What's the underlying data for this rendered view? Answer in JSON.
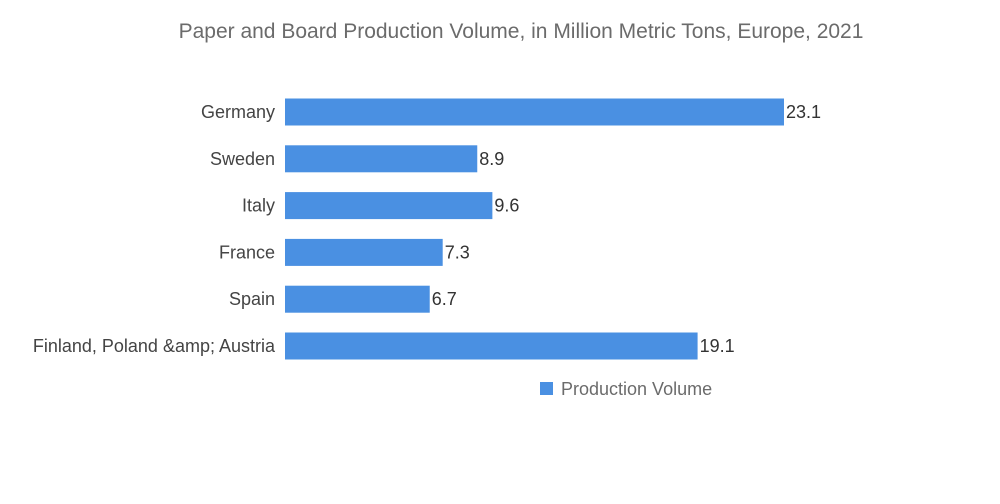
{
  "chart_data": {
    "type": "bar",
    "orientation": "horizontal",
    "title": "Paper and Board Production Volume, in Million Metric Tons, Europe, 2021",
    "categories": [
      "Germany",
      "Sweden",
      "Italy",
      "France",
      "Spain",
      "Finland, Poland &amp; Austria"
    ],
    "series": [
      {
        "name": "Production Volume",
        "values": [
          23.1,
          8.9,
          9.6,
          7.3,
          6.7,
          19.1
        ],
        "color": "#4a90e2"
      }
    ],
    "xlim": [
      0,
      23.1
    ],
    "grid": false,
    "legend_position": "bottom-right"
  }
}
